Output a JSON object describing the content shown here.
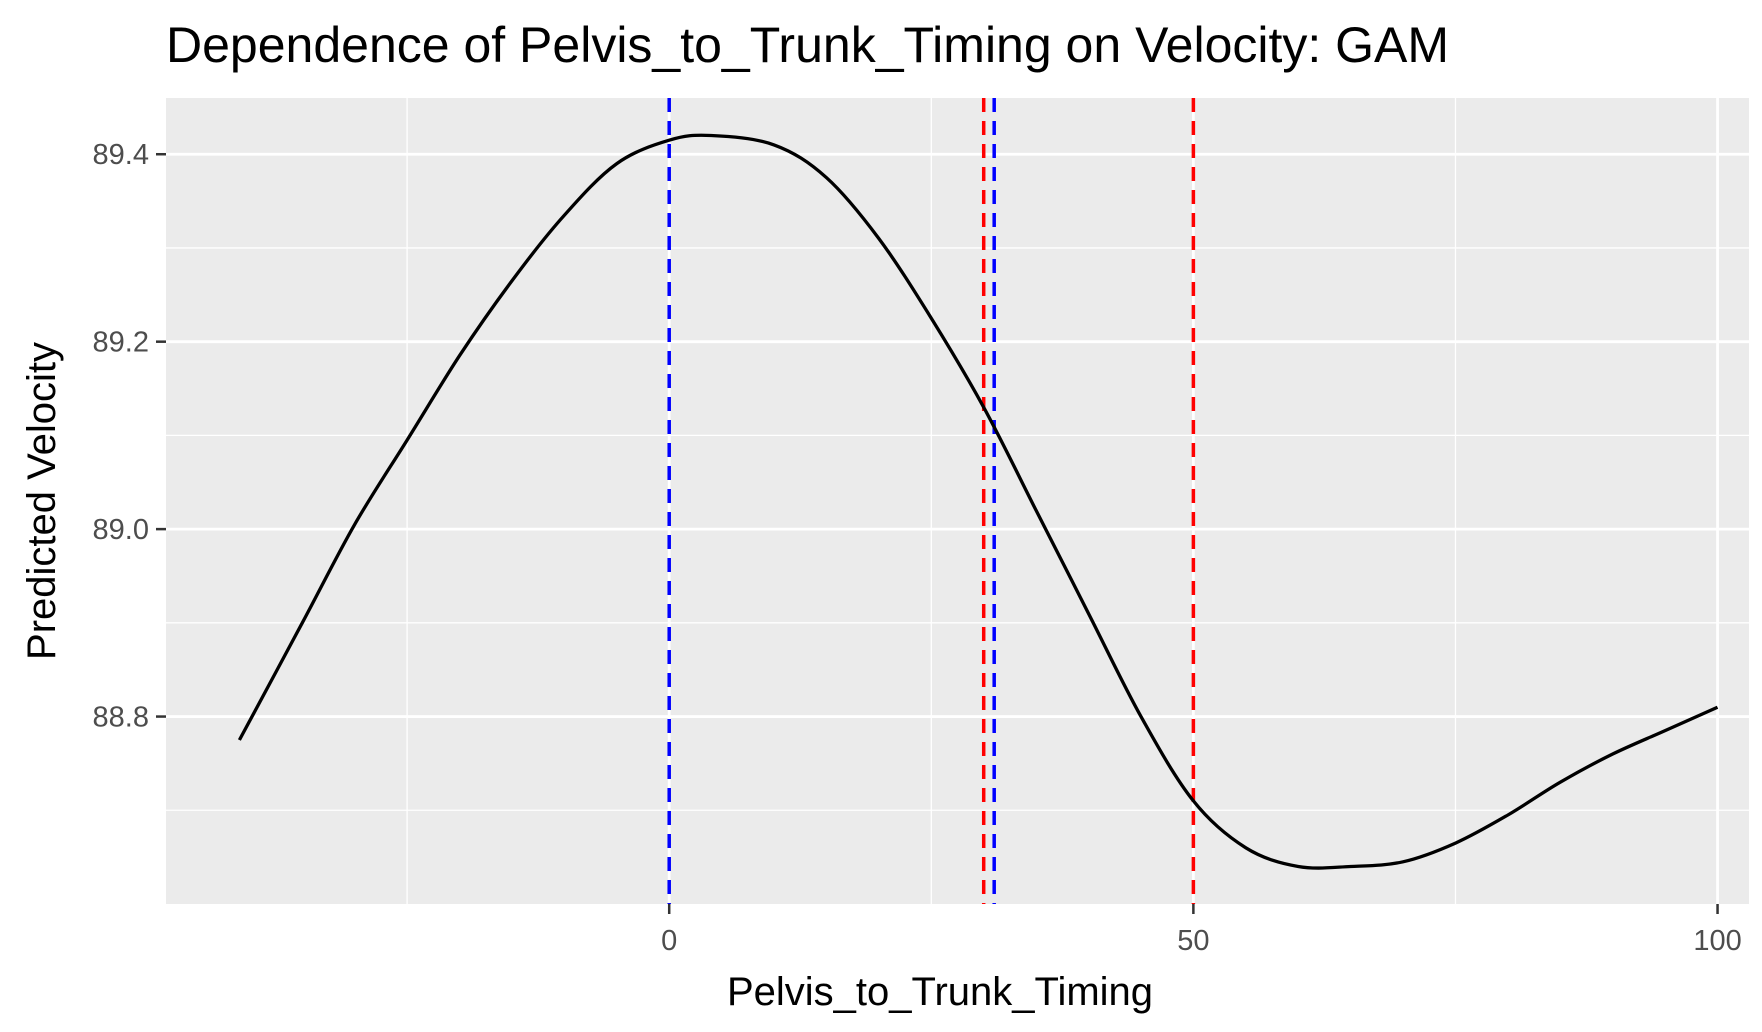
{
  "chart_data": {
    "type": "line",
    "title": "Dependence of Pelvis_to_Trunk_Timing on Velocity: GAM",
    "xlabel": "Pelvis_to_Trunk_Timing",
    "ylabel": "Predicted Velocity",
    "xlim": [
      -48,
      103
    ],
    "ylim": [
      88.6,
      89.46
    ],
    "x_ticks": [
      0,
      50,
      100
    ],
    "x_tick_labels": [
      "0",
      "50",
      "100"
    ],
    "y_ticks": [
      88.8,
      89.0,
      89.2,
      89.4
    ],
    "y_tick_labels": [
      "88.8",
      "89.0",
      "89.2",
      "89.4"
    ],
    "x_minor_ticks": [
      -25,
      25,
      75
    ],
    "y_minor_ticks": [
      88.7,
      88.9,
      89.1,
      89.3
    ],
    "grid": true,
    "background": "#ebebeb",
    "series": [
      {
        "color": "#000000",
        "x": [
          -41,
          -35,
          -30,
          -25,
          -20,
          -15,
          -10,
          -5,
          0,
          4,
          10,
          15,
          20,
          25,
          30,
          35,
          40,
          45,
          50,
          55,
          60,
          65,
          70,
          75,
          80,
          85,
          90,
          95,
          100
        ],
        "y": [
          88.775,
          88.9,
          89.005,
          89.095,
          89.185,
          89.265,
          89.335,
          89.39,
          89.415,
          89.42,
          89.41,
          89.375,
          89.31,
          89.225,
          89.13,
          89.02,
          88.91,
          88.8,
          88.71,
          88.66,
          88.64,
          88.64,
          88.645,
          88.665,
          88.695,
          88.73,
          88.76,
          88.785,
          88.81
        ]
      }
    ],
    "vlines": [
      {
        "x": 0,
        "color": "#0000ff",
        "style": "dashed"
      },
      {
        "x": 31,
        "color": "#0000ff",
        "style": "dashed"
      },
      {
        "x": 30,
        "color": "#ff0000",
        "style": "dashed"
      },
      {
        "x": 50,
        "color": "#ff0000",
        "style": "dashed"
      }
    ]
  }
}
